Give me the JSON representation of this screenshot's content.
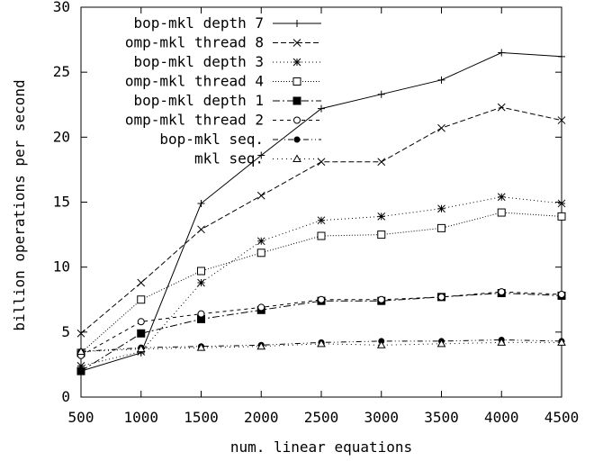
{
  "chart_data": {
    "type": "line",
    "title": "",
    "xlabel": "num. linear equations",
    "ylabel": "billion operations per second",
    "xlim": [
      500,
      4500
    ],
    "ylim": [
      0,
      30
    ],
    "x_ticks": [
      500,
      1000,
      1500,
      2000,
      2500,
      3000,
      3500,
      4000,
      4500
    ],
    "y_ticks": [
      0,
      5,
      10,
      15,
      20,
      25,
      30
    ],
    "grid": false,
    "legend_position": "top-left",
    "x": [
      500,
      1000,
      1500,
      2000,
      2500,
      3000,
      3500,
      4000,
      4500
    ],
    "series": [
      {
        "name": "bop-mkl depth 7",
        "marker": "plus",
        "dash": "solid",
        "values": [
          2.0,
          3.4,
          14.9,
          18.6,
          22.2,
          23.3,
          24.4,
          26.5,
          26.2
        ]
      },
      {
        "name": "omp-mkl thread 8",
        "marker": "cross",
        "dash": "dashed",
        "values": [
          4.9,
          8.8,
          12.9,
          15.5,
          18.1,
          18.1,
          20.7,
          22.3,
          21.3
        ]
      },
      {
        "name": "bop-mkl depth 3",
        "marker": "star",
        "dash": "dotted",
        "values": [
          2.4,
          3.5,
          8.8,
          12.0,
          13.6,
          13.9,
          14.5,
          15.4,
          14.9
        ]
      },
      {
        "name": "omp-mkl thread 4",
        "marker": "square-open",
        "dash": "fine-dotted",
        "values": [
          3.4,
          7.5,
          9.7,
          11.1,
          12.4,
          12.5,
          13.0,
          14.2,
          13.9
        ]
      },
      {
        "name": "bop-mkl depth 1",
        "marker": "square-filled",
        "dash": "dash-dot",
        "values": [
          2.0,
          4.9,
          6.0,
          6.7,
          7.4,
          7.4,
          7.7,
          8.0,
          7.8
        ]
      },
      {
        "name": "omp-mkl thread 2",
        "marker": "circle-open",
        "dash": "long-dash",
        "values": [
          3.2,
          5.8,
          6.4,
          6.9,
          7.5,
          7.5,
          7.7,
          8.1,
          7.9
        ]
      },
      {
        "name": "bop-mkl seq.",
        "marker": "circle-filled",
        "dash": "dash-dot-dot",
        "values": [
          3.5,
          3.8,
          3.9,
          4.0,
          4.2,
          4.3,
          4.3,
          4.4,
          4.3
        ]
      },
      {
        "name": "mkl seq.",
        "marker": "triangle-open",
        "dash": "sparse-dot",
        "values": [
          3.5,
          3.7,
          3.8,
          3.9,
          4.1,
          4.0,
          4.1,
          4.2,
          4.2
        ]
      }
    ]
  }
}
